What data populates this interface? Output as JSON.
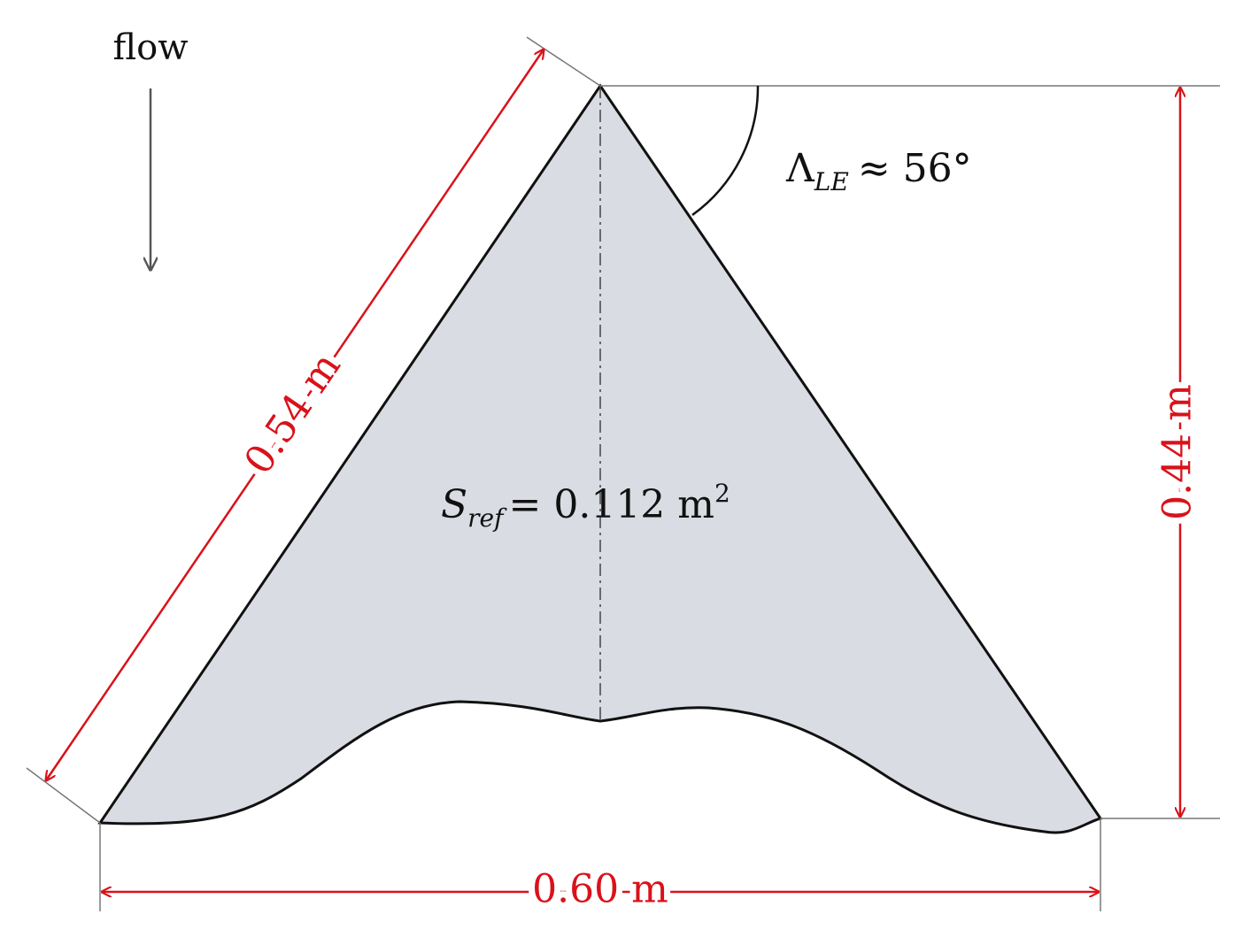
{
  "flow_label": "flow",
  "sweep_angle": {
    "symbol": "Λ",
    "subscript": "LE",
    "text": "≈ 56°"
  },
  "reference_area": {
    "symbol": "S",
    "subscript": "ref",
    "text": "= 0.112 m",
    "superscript": "2"
  },
  "dimensions": {
    "leading_edge_length": "0.54 m",
    "root_chord": "0.44 m",
    "span": "0.60 m"
  }
}
